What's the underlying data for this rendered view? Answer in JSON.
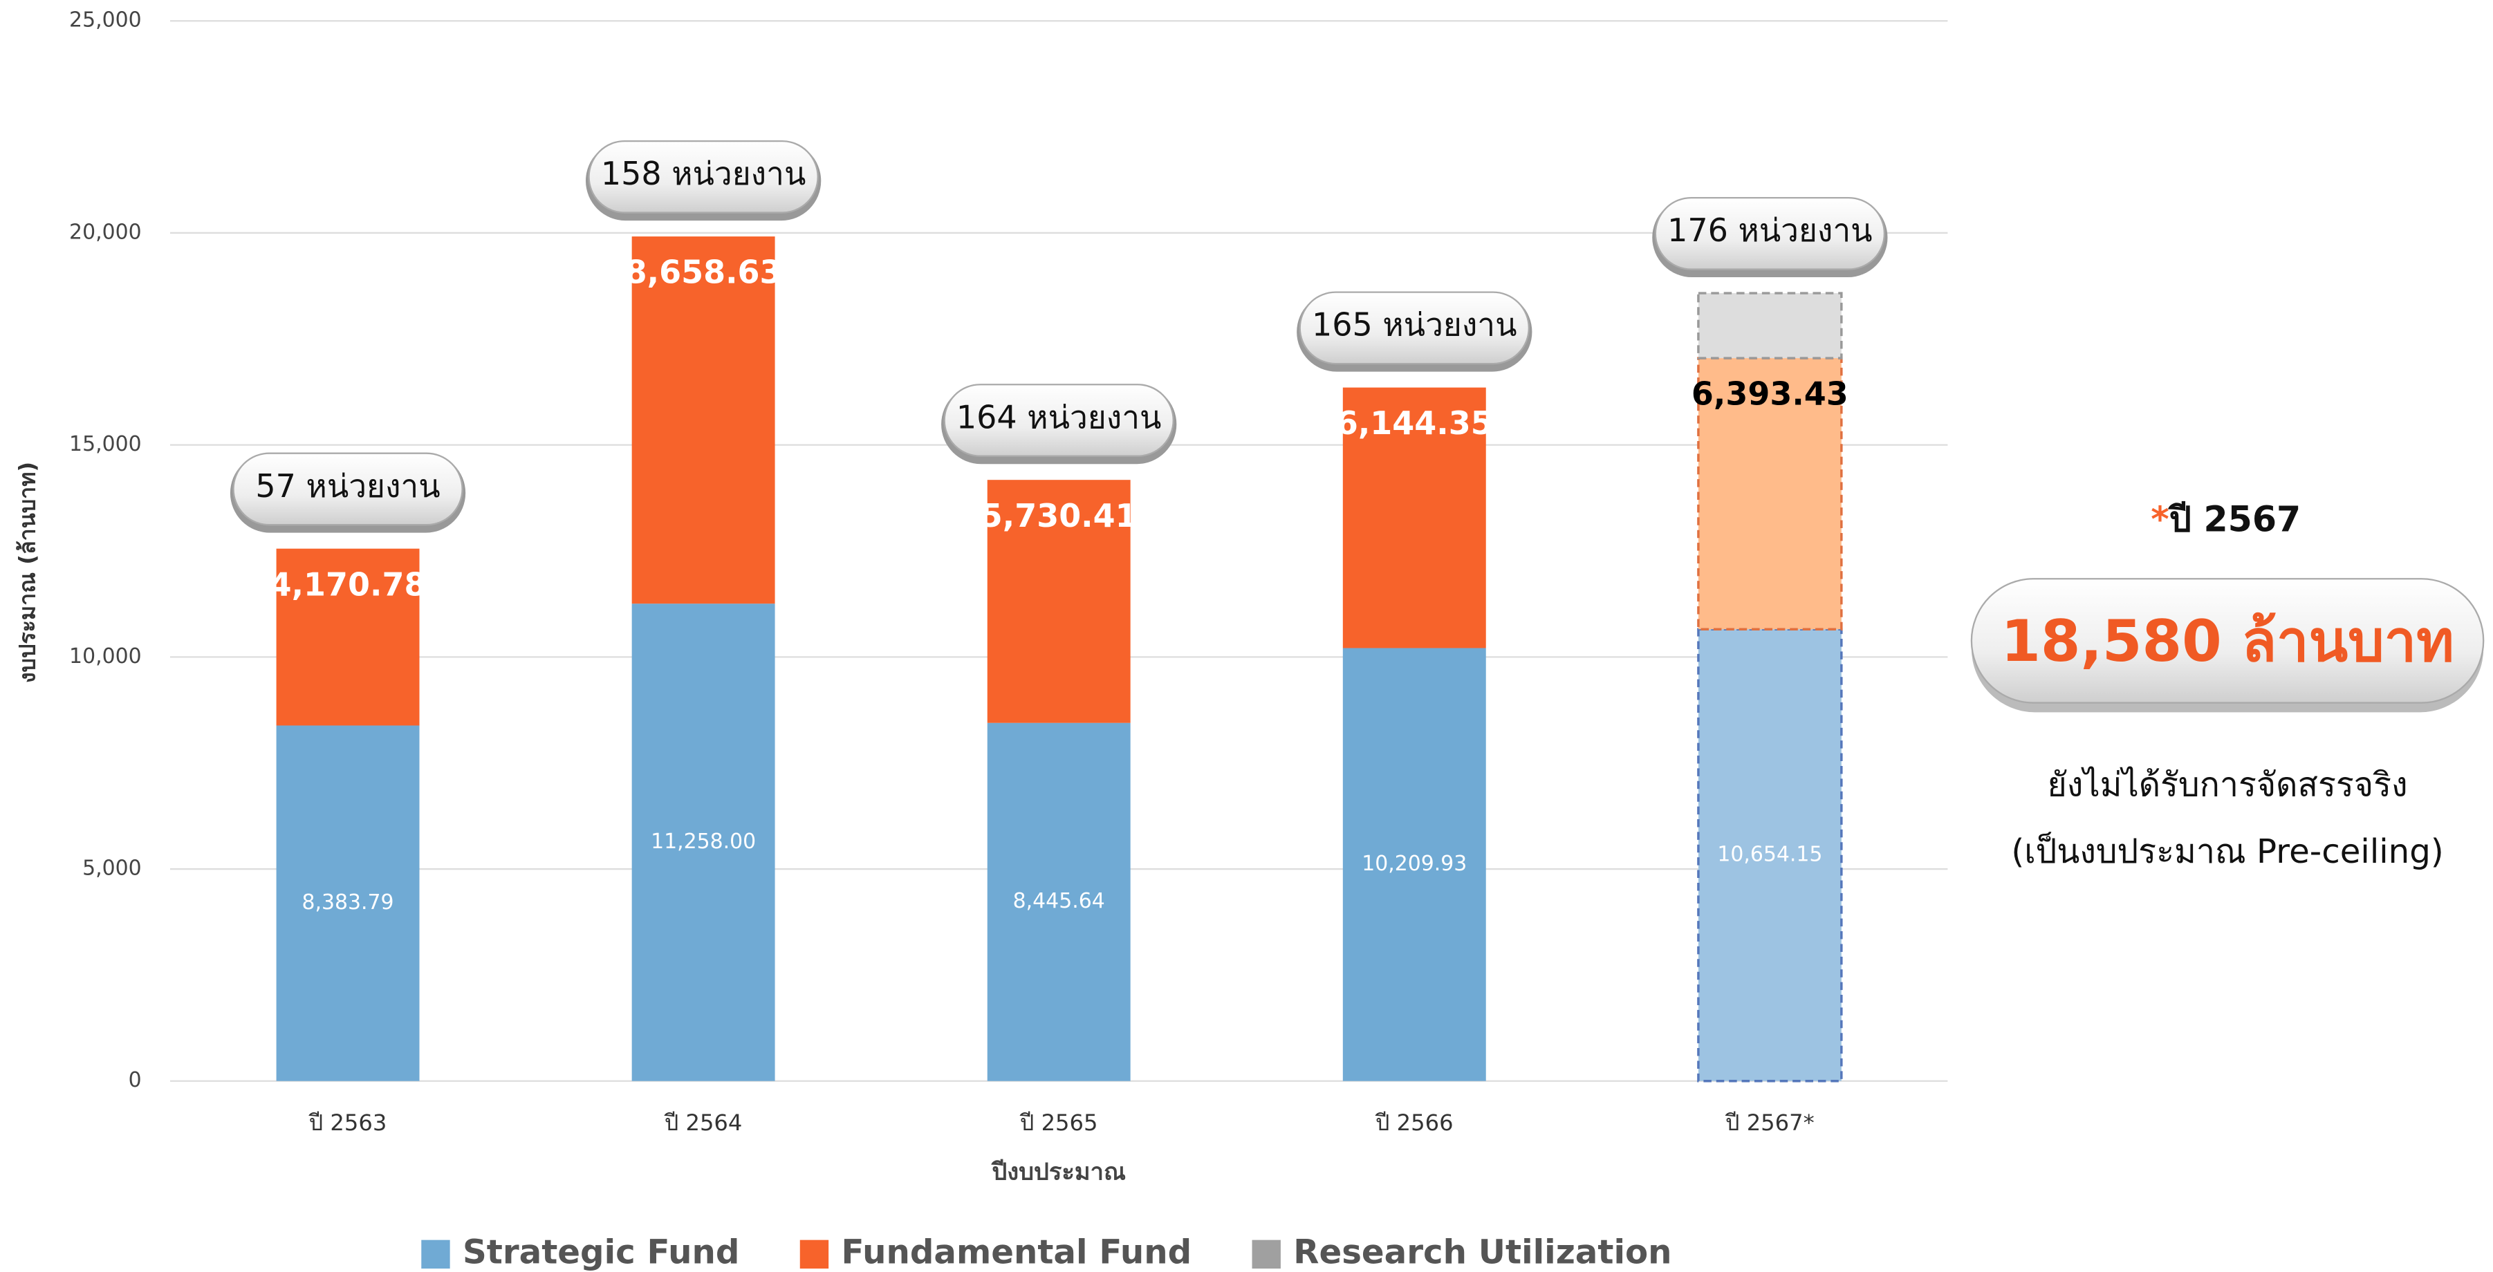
{
  "chart_data": {
    "type": "stacked_bar",
    "y_label": "งบประมาณ (ล้านบาท)",
    "x_label": "ปีงบประมาณ",
    "categories": [
      "ปี 2563",
      "ปี 2564",
      "ปี 2565",
      "ปี 2566",
      "ปี 2567*"
    ],
    "series": [
      {
        "name": "Strategic Fund",
        "color": "#70aad4",
        "projected_color": "#9dc3e2",
        "values": [
          8383.79,
          11258.0,
          8445.64,
          10209.93,
          10654.15
        ],
        "value_labels": [
          "8,383.79",
          "11,258.00",
          "8,445.64",
          "10,209.93",
          "10,654.15"
        ]
      },
      {
        "name": "Fundamental Fund",
        "color": "#f7632b",
        "projected_color": "#ffbb8a",
        "values": [
          4170.78,
          8658.63,
          5730.41,
          6144.35,
          6393.43
        ],
        "value_labels": [
          "4,170.78",
          "8,658.63",
          "5,730.41",
          "6,144.35",
          "6,393.43"
        ]
      },
      {
        "name": "Research Utilization",
        "color": "#a0a0a0",
        "projected_color": "#dddddd",
        "values": [
          null,
          null,
          null,
          null,
          1532.42
        ]
      }
    ],
    "projected_index": 4,
    "unit_labels": [
      "57 หน่วยงาน",
      "158 หน่วยงาน",
      "164 หน่วยงาน",
      "165 หน่วยงาน",
      "176 หน่วยงาน"
    ],
    "ylim": [
      0,
      25000
    ],
    "yticks": [
      0,
      {
        "value": 5000,
        "label": "5,000"
      },
      {
        "value": 10000,
        "label": "10,000"
      },
      {
        "value": 15000,
        "label": "15,000"
      },
      {
        "value": 20000,
        "label": "20,000"
      },
      {
        "value": 25000,
        "label": "25,000"
      }
    ],
    "grid": true,
    "side_note": {
      "marker": "*",
      "heading": "ปี 2567",
      "total": "18,580 ล้านบาท",
      "line1": "ยังไม่ได้รับการจัดสรรจริง",
      "line2": "(เป็นงบประมาณ Pre-ceiling)"
    }
  }
}
